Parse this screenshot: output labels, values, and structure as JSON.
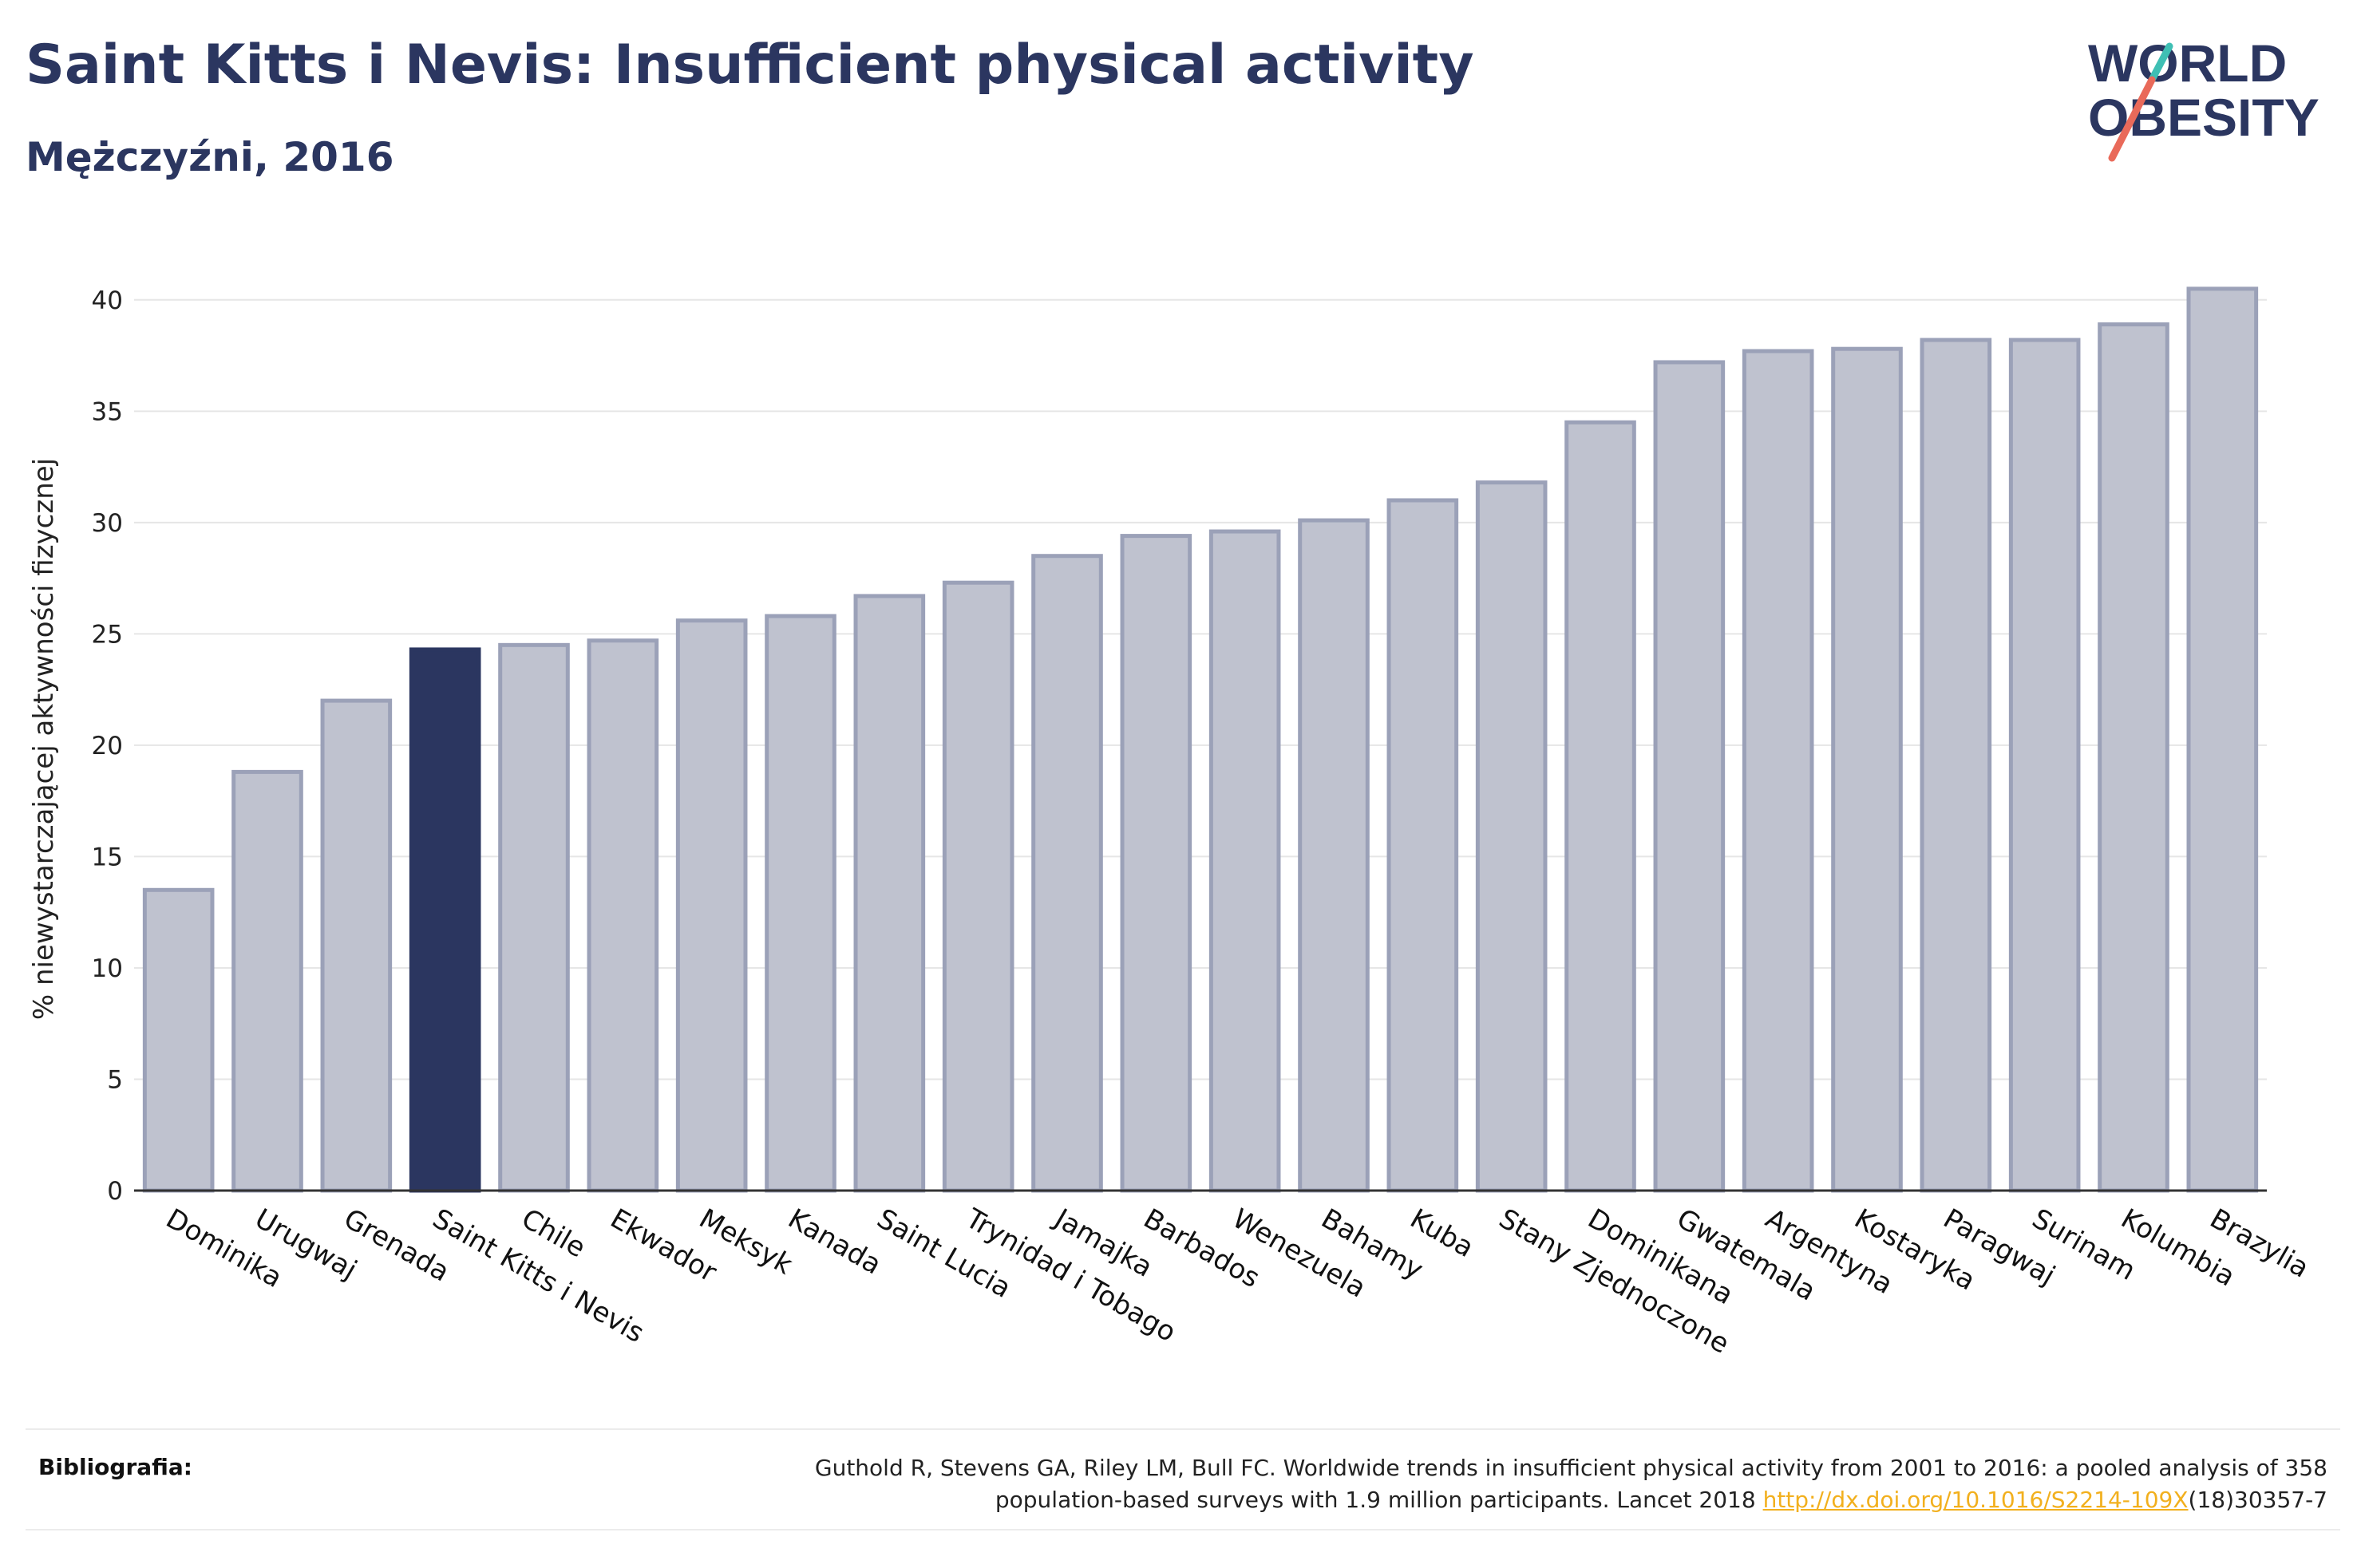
{
  "header": {
    "title": "Saint Kitts i Nevis: Insufficient physical activity",
    "subtitle": "Mężczyźni, 2016"
  },
  "logo": {
    "line1": "WORLD",
    "line2": "OBESITY"
  },
  "chart_data": {
    "type": "bar",
    "ylabel": "% niewystarczającej aktywności fizycznej",
    "ylim": [
      0,
      42
    ],
    "yticks": [
      0,
      5,
      10,
      15,
      20,
      25,
      30,
      35,
      40
    ],
    "grid": true,
    "highlight": "Saint Kitts i Nevis",
    "colors": {
      "bar": "#bfc2cf",
      "bar_border": "#9ba1b8",
      "highlight": "#2b3660"
    },
    "categories": [
      "Dominika",
      "Urugwaj",
      "Grenada",
      "Saint Kitts i Nevis",
      "Chile",
      "Ekwador",
      "Meksyk",
      "Kanada",
      "Saint Lucia",
      "Trynidad i Tobago",
      "Jamajka",
      "Barbados",
      "Wenezuela",
      "Bahamy",
      "Kuba",
      "Stany Zjednoczone",
      "Dominikana",
      "Gwatemala",
      "Argentyna",
      "Kostaryka",
      "Paragwaj",
      "Surinam",
      "Kolumbia",
      "Brazylia"
    ],
    "values": [
      13.5,
      18.8,
      22.0,
      24.3,
      24.5,
      24.7,
      25.6,
      25.8,
      26.7,
      27.3,
      28.5,
      29.4,
      29.6,
      30.1,
      31.0,
      31.8,
      34.5,
      37.2,
      37.7,
      37.8,
      38.2,
      38.2,
      38.9,
      40.5
    ]
  },
  "footer": {
    "label": "Bibliografia:",
    "text_line1": "Guthold R, Stevens GA, Riley LM, Bull FC. Worldwide trends in insufficient physical activity from 2001 to 2016: a pooled analysis of 358",
    "text_line2_prefix": "population-based surveys with 1.9 million participants. Lancet 2018 ",
    "link": "http://dx.doi.org/10.1016/S2214-109X",
    "text_line2_suffix": "(18)30357-7"
  }
}
